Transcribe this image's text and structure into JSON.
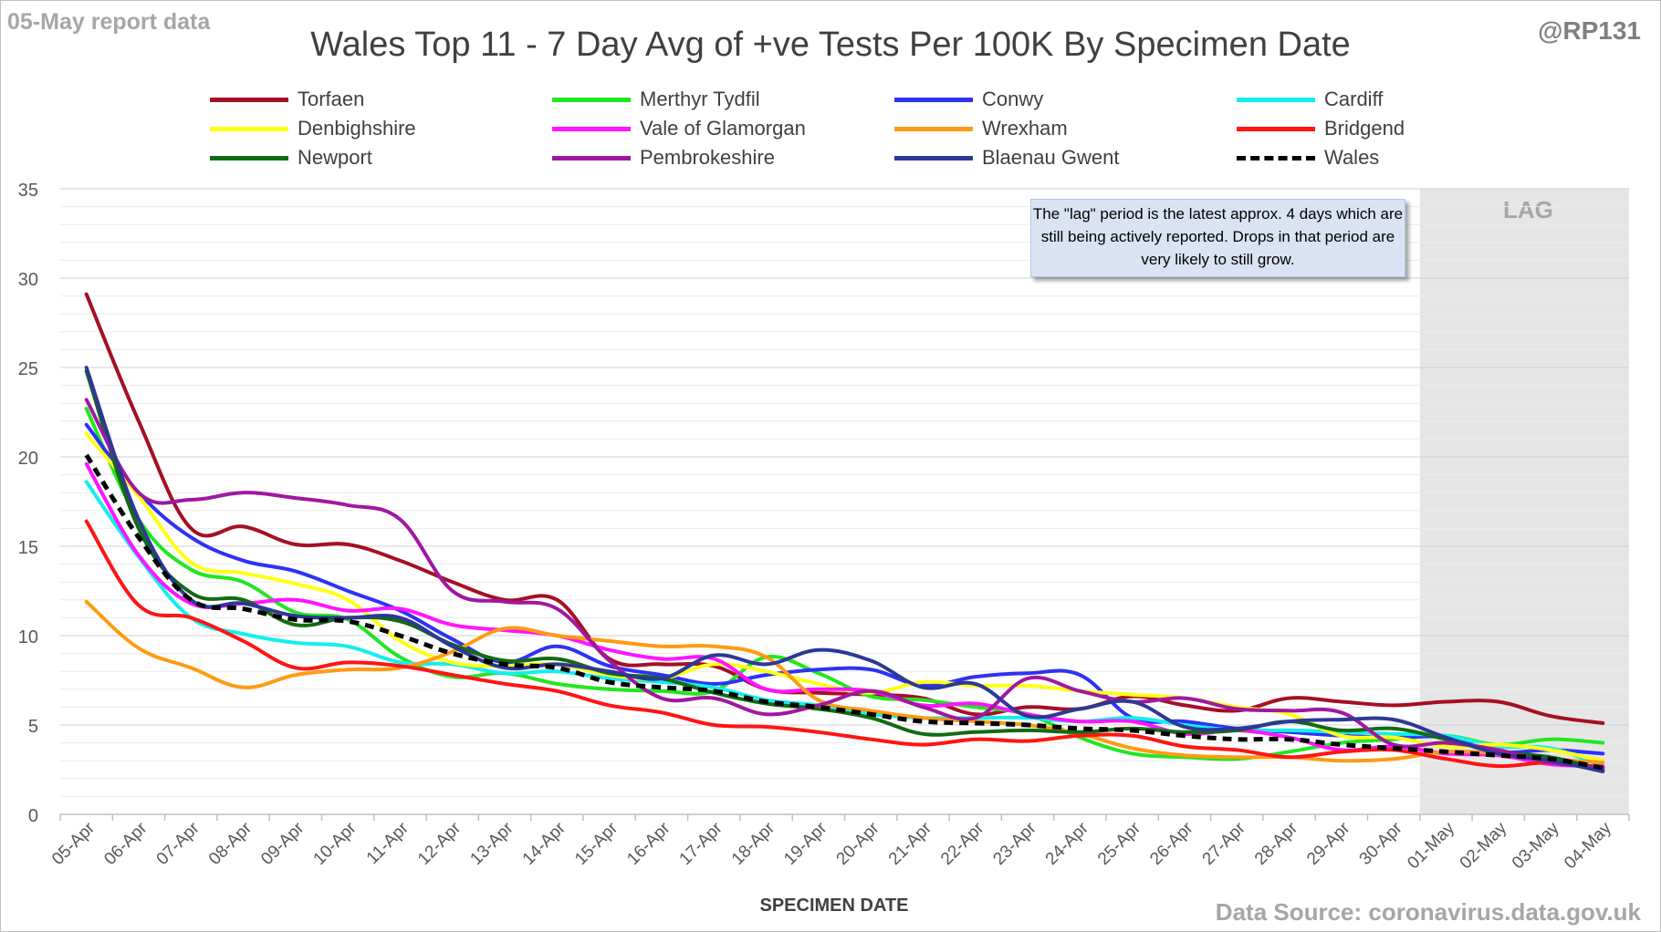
{
  "header": {
    "report_date_label": "05-May report data",
    "author_handle": "@RP131"
  },
  "footer": {
    "data_source": "Data Source: coronavirus.data.gov.uk"
  },
  "annotation": {
    "lag_note": "The \"lag\" period is the latest approx. 4 days which are still being actively reported. Drops in that period are very likely to still grow.",
    "lag_label": "LAG"
  },
  "colors": {
    "Torfaen": "#a50f24",
    "Merthyr Tydfil": "#22e622",
    "Conwy": "#2d32f5",
    "Cardiff": "#14eeee",
    "Denbighshire": "#ffff14",
    "Vale of Glamorgan": "#ff14ff",
    "Wrexham": "#ff9a14",
    "Bridgend": "#ff1414",
    "Newport": "#126b12",
    "Pembrokeshire": "#a018a0",
    "Blaenau Gwent": "#2d3896",
    "Wales": "#000000",
    "lag_shading": "#e6e6e6"
  },
  "chart_data": {
    "type": "line",
    "title": "Wales Top 11 - 7 Day Avg of +ve Tests Per 100K By Specimen Date",
    "xlabel": "SPECIMEN DATE",
    "ylabel": "",
    "ylim": [
      0,
      35
    ],
    "yticks": [
      0,
      5,
      10,
      15,
      20,
      25,
      30,
      35
    ],
    "grid": true,
    "legend_position": "top",
    "lag_period": [
      "01-May",
      "04-May"
    ],
    "categories": [
      "05-Apr",
      "06-Apr",
      "07-Apr",
      "08-Apr",
      "09-Apr",
      "10-Apr",
      "11-Apr",
      "12-Apr",
      "13-Apr",
      "14-Apr",
      "15-Apr",
      "16-Apr",
      "17-Apr",
      "18-Apr",
      "19-Apr",
      "20-Apr",
      "21-Apr",
      "22-Apr",
      "23-Apr",
      "24-Apr",
      "25-Apr",
      "26-Apr",
      "27-Apr",
      "28-Apr",
      "29-Apr",
      "30-Apr",
      "01-May",
      "02-May",
      "03-May",
      "04-May"
    ],
    "series": [
      {
        "name": "Torfaen",
        "values": [
          29.1,
          22.0,
          16.0,
          16.1,
          15.1,
          15.1,
          14.2,
          13.0,
          12.0,
          12.0,
          8.7,
          8.4,
          8.3,
          7.0,
          6.8,
          6.7,
          6.5,
          5.6,
          6.0,
          5.9,
          6.6,
          6.1,
          5.8,
          6.5,
          6.3,
          6.1,
          6.3,
          6.3,
          5.5,
          5.1
        ]
      },
      {
        "name": "Merthyr Tydfil",
        "values": [
          22.7,
          16.5,
          13.7,
          13.0,
          11.3,
          10.9,
          8.8,
          7.7,
          7.9,
          7.3,
          7.0,
          6.9,
          6.9,
          8.8,
          7.9,
          6.6,
          6.4,
          6.0,
          5.6,
          4.3,
          3.4,
          3.2,
          3.1,
          3.5,
          4.0,
          4.2,
          4.4,
          3.9,
          4.2,
          4.0
        ]
      },
      {
        "name": "Conwy",
        "values": [
          21.8,
          18.0,
          15.5,
          14.2,
          13.6,
          12.5,
          11.4,
          9.8,
          8.5,
          9.4,
          8.3,
          7.8,
          7.3,
          7.8,
          8.1,
          8.1,
          7.2,
          7.7,
          7.9,
          7.8,
          5.4,
          5.2,
          4.8,
          4.6,
          4.4,
          4.3,
          4.3,
          3.5,
          3.6,
          3.4
        ]
      },
      {
        "name": "Cardiff",
        "values": [
          18.6,
          14.4,
          11.0,
          10.1,
          9.6,
          9.4,
          8.5,
          8.4,
          7.9,
          8.0,
          7.6,
          7.4,
          7.1,
          6.4,
          6.1,
          5.6,
          5.4,
          5.4,
          5.4,
          5.2,
          5.4,
          5.0,
          4.7,
          4.7,
          4.6,
          4.5,
          4.4,
          3.8,
          3.7,
          2.7
        ]
      },
      {
        "name": "Denbighshire",
        "values": [
          21.3,
          17.8,
          14.1,
          13.5,
          12.9,
          12.0,
          9.7,
          8.5,
          8.3,
          8.4,
          7.8,
          7.6,
          8.4,
          8.0,
          7.3,
          6.8,
          7.4,
          7.2,
          7.2,
          6.9,
          6.7,
          6.5,
          6.0,
          5.6,
          4.4,
          4.3,
          3.8,
          3.9,
          3.6,
          3.0
        ]
      },
      {
        "name": "Vale of Glamorgan",
        "values": [
          19.6,
          14.5,
          11.8,
          11.8,
          12.0,
          11.4,
          11.5,
          10.6,
          10.3,
          10.0,
          9.2,
          8.7,
          8.7,
          7.0,
          7.0,
          6.9,
          6.1,
          6.2,
          5.6,
          5.2,
          5.2,
          4.5,
          4.7,
          4.3,
          3.6,
          3.8,
          3.4,
          3.3,
          2.8,
          2.7
        ]
      },
      {
        "name": "Wrexham",
        "values": [
          11.9,
          9.3,
          8.2,
          7.1,
          7.8,
          8.1,
          8.2,
          9.1,
          10.4,
          10.0,
          9.7,
          9.4,
          9.4,
          8.8,
          6.4,
          5.8,
          5.4,
          5.2,
          5.0,
          4.5,
          3.7,
          3.3,
          3.2,
          3.2,
          3.0,
          3.1,
          3.5,
          3.4,
          3.1,
          2.9
        ]
      },
      {
        "name": "Bridgend",
        "values": [
          16.4,
          11.7,
          11.0,
          9.7,
          8.2,
          8.5,
          8.3,
          7.8,
          7.3,
          6.9,
          6.1,
          5.7,
          5.0,
          4.9,
          4.6,
          4.2,
          3.9,
          4.2,
          4.1,
          4.4,
          4.4,
          3.8,
          3.6,
          3.2,
          3.5,
          3.6,
          3.1,
          2.7,
          2.9,
          2.6
        ]
      },
      {
        "name": "Newport",
        "values": [
          24.8,
          16.0,
          12.4,
          12.0,
          10.6,
          11.0,
          10.8,
          9.5,
          8.6,
          8.7,
          7.9,
          7.6,
          6.8,
          6.2,
          5.9,
          5.4,
          4.5,
          4.6,
          4.7,
          4.6,
          4.8,
          4.6,
          4.7,
          5.2,
          4.7,
          4.8,
          4.2,
          3.5,
          3.2,
          2.5
        ]
      },
      {
        "name": "Pembrokeshire",
        "values": [
          23.2,
          18.0,
          17.6,
          18.0,
          17.7,
          17.3,
          16.5,
          12.5,
          11.9,
          11.5,
          8.6,
          6.5,
          6.5,
          5.6,
          6.1,
          6.9,
          6.0,
          5.4,
          7.6,
          6.9,
          6.3,
          6.5,
          5.9,
          5.8,
          5.7,
          3.9,
          4.0,
          3.6,
          2.9,
          2.6
        ]
      },
      {
        "name": "Blaenau Gwent",
        "values": [
          25.0,
          16.5,
          12.0,
          11.8,
          11.1,
          11.0,
          11.0,
          9.4,
          8.2,
          8.4,
          8.0,
          7.6,
          8.9,
          8.4,
          9.2,
          8.6,
          7.1,
          7.3,
          5.5,
          5.9,
          6.3,
          4.9,
          4.8,
          5.2,
          5.3,
          5.3,
          4.3,
          3.4,
          3.0,
          2.4
        ]
      },
      {
        "name": "Wales",
        "values": [
          20.1,
          15.5,
          12.0,
          11.5,
          10.9,
          10.8,
          10.0,
          9.0,
          8.4,
          8.2,
          7.4,
          7.1,
          6.9,
          6.3,
          6.0,
          5.6,
          5.2,
          5.1,
          5.0,
          4.8,
          4.7,
          4.4,
          4.2,
          4.2,
          3.9,
          3.7,
          3.5,
          3.3,
          3.1,
          2.6
        ],
        "dashed": true
      }
    ]
  }
}
